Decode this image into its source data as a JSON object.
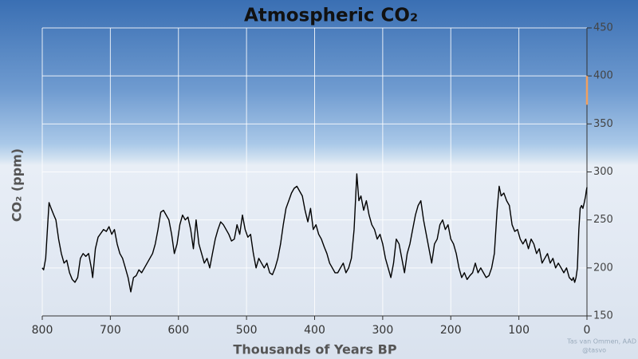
{
  "chart_data": {
    "type": "line",
    "title": "Atmospheric CO₂",
    "x_label": "Thousands of Years BP",
    "y_label": "CO₂ (ppm)",
    "credit": [
      "Tas van Ommen, AAD",
      "@tasvo"
    ],
    "xlim": [
      800,
      0
    ],
    "xticks": [
      800,
      700,
      600,
      500,
      400,
      300,
      200,
      100,
      0
    ],
    "ylim": [
      150,
      450
    ],
    "yticks": [
      150,
      200,
      250,
      300,
      350,
      400,
      450
    ],
    "grid": true,
    "series": [
      {
        "color": "#000000",
        "x": [
          800,
          798,
          795,
          792,
          790,
          787,
          783,
          780,
          776,
          772,
          768,
          764,
          760,
          756,
          752,
          748,
          744,
          740,
          736,
          732,
          728,
          726,
          722,
          718,
          714,
          710,
          706,
          702,
          698,
          694,
          690,
          686,
          682,
          678,
          674,
          670,
          666,
          662,
          658,
          654,
          650,
          646,
          642,
          638,
          634,
          630,
          626,
          622,
          618,
          614,
          610,
          606,
          602,
          598,
          594,
          590,
          586,
          582,
          578,
          574,
          570,
          566,
          562,
          558,
          554,
          550,
          546,
          542,
          538,
          534,
          530,
          526,
          522,
          518,
          514,
          510,
          506,
          502,
          498,
          494,
          490,
          486,
          482,
          478,
          474,
          470,
          466,
          462,
          458,
          454,
          450,
          446,
          442,
          438,
          434,
          430,
          426,
          422,
          418,
          414,
          410,
          406,
          402,
          398,
          394,
          390,
          386,
          382,
          378,
          374,
          370,
          366,
          362,
          358,
          354,
          350,
          346,
          342,
          338,
          335,
          332,
          328,
          324,
          320,
          316,
          312,
          308,
          304,
          300,
          296,
          292,
          288,
          284,
          280,
          276,
          272,
          268,
          264,
          260,
          256,
          252,
          248,
          244,
          240,
          236,
          232,
          228,
          224,
          220,
          216,
          212,
          208,
          204,
          200,
          196,
          192,
          188,
          184,
          180,
          176,
          172,
          168,
          164,
          160,
          156,
          152,
          148,
          144,
          140,
          136,
          132,
          129,
          126,
          122,
          118,
          114,
          110,
          106,
          102,
          98,
          94,
          90,
          86,
          82,
          78,
          74,
          70,
          66,
          62,
          58,
          54,
          50,
          46,
          42,
          38,
          34,
          30,
          26,
          22,
          20,
          18,
          16,
          14,
          12,
          10,
          8,
          6,
          4,
          2,
          1,
          0
        ],
        "values": [
          200,
          198,
          210,
          245,
          268,
          262,
          255,
          250,
          230,
          215,
          205,
          208,
          195,
          188,
          185,
          190,
          210,
          215,
          212,
          215,
          200,
          190,
          220,
          232,
          236,
          240,
          238,
          243,
          235,
          240,
          225,
          215,
          210,
          200,
          190,
          175,
          190,
          192,
          198,
          195,
          200,
          205,
          210,
          215,
          225,
          240,
          258,
          260,
          255,
          250,
          235,
          215,
          225,
          245,
          255,
          250,
          253,
          240,
          220,
          250,
          225,
          215,
          205,
          210,
          200,
          215,
          230,
          240,
          248,
          245,
          240,
          235,
          228,
          230,
          245,
          235,
          255,
          240,
          232,
          235,
          215,
          200,
          210,
          205,
          200,
          205,
          195,
          193,
          200,
          210,
          225,
          245,
          262,
          270,
          278,
          283,
          285,
          280,
          275,
          260,
          248,
          262,
          240,
          245,
          235,
          230,
          222,
          215,
          205,
          200,
          195,
          195,
          200,
          205,
          195,
          200,
          210,
          240,
          298,
          270,
          275,
          260,
          270,
          255,
          245,
          240,
          230,
          235,
          225,
          210,
          200,
          190,
          205,
          230,
          225,
          210,
          195,
          215,
          225,
          240,
          255,
          265,
          270,
          250,
          235,
          220,
          205,
          225,
          230,
          245,
          250,
          240,
          245,
          230,
          225,
          215,
          200,
          190,
          195,
          188,
          192,
          195,
          205,
          195,
          200,
          195,
          190,
          192,
          200,
          215,
          260,
          285,
          275,
          278,
          270,
          265,
          245,
          238,
          240,
          230,
          225,
          230,
          220,
          230,
          225,
          215,
          220,
          205,
          210,
          215,
          205,
          210,
          200,
          205,
          200,
          195,
          200,
          190,
          187,
          190,
          185,
          190,
          200,
          240,
          262,
          265,
          262,
          268,
          275,
          280,
          284
        ]
      },
      {
        "color": "#f0a060",
        "x": [
          0,
          0
        ],
        "values": [
          370,
          400
        ]
      }
    ]
  }
}
